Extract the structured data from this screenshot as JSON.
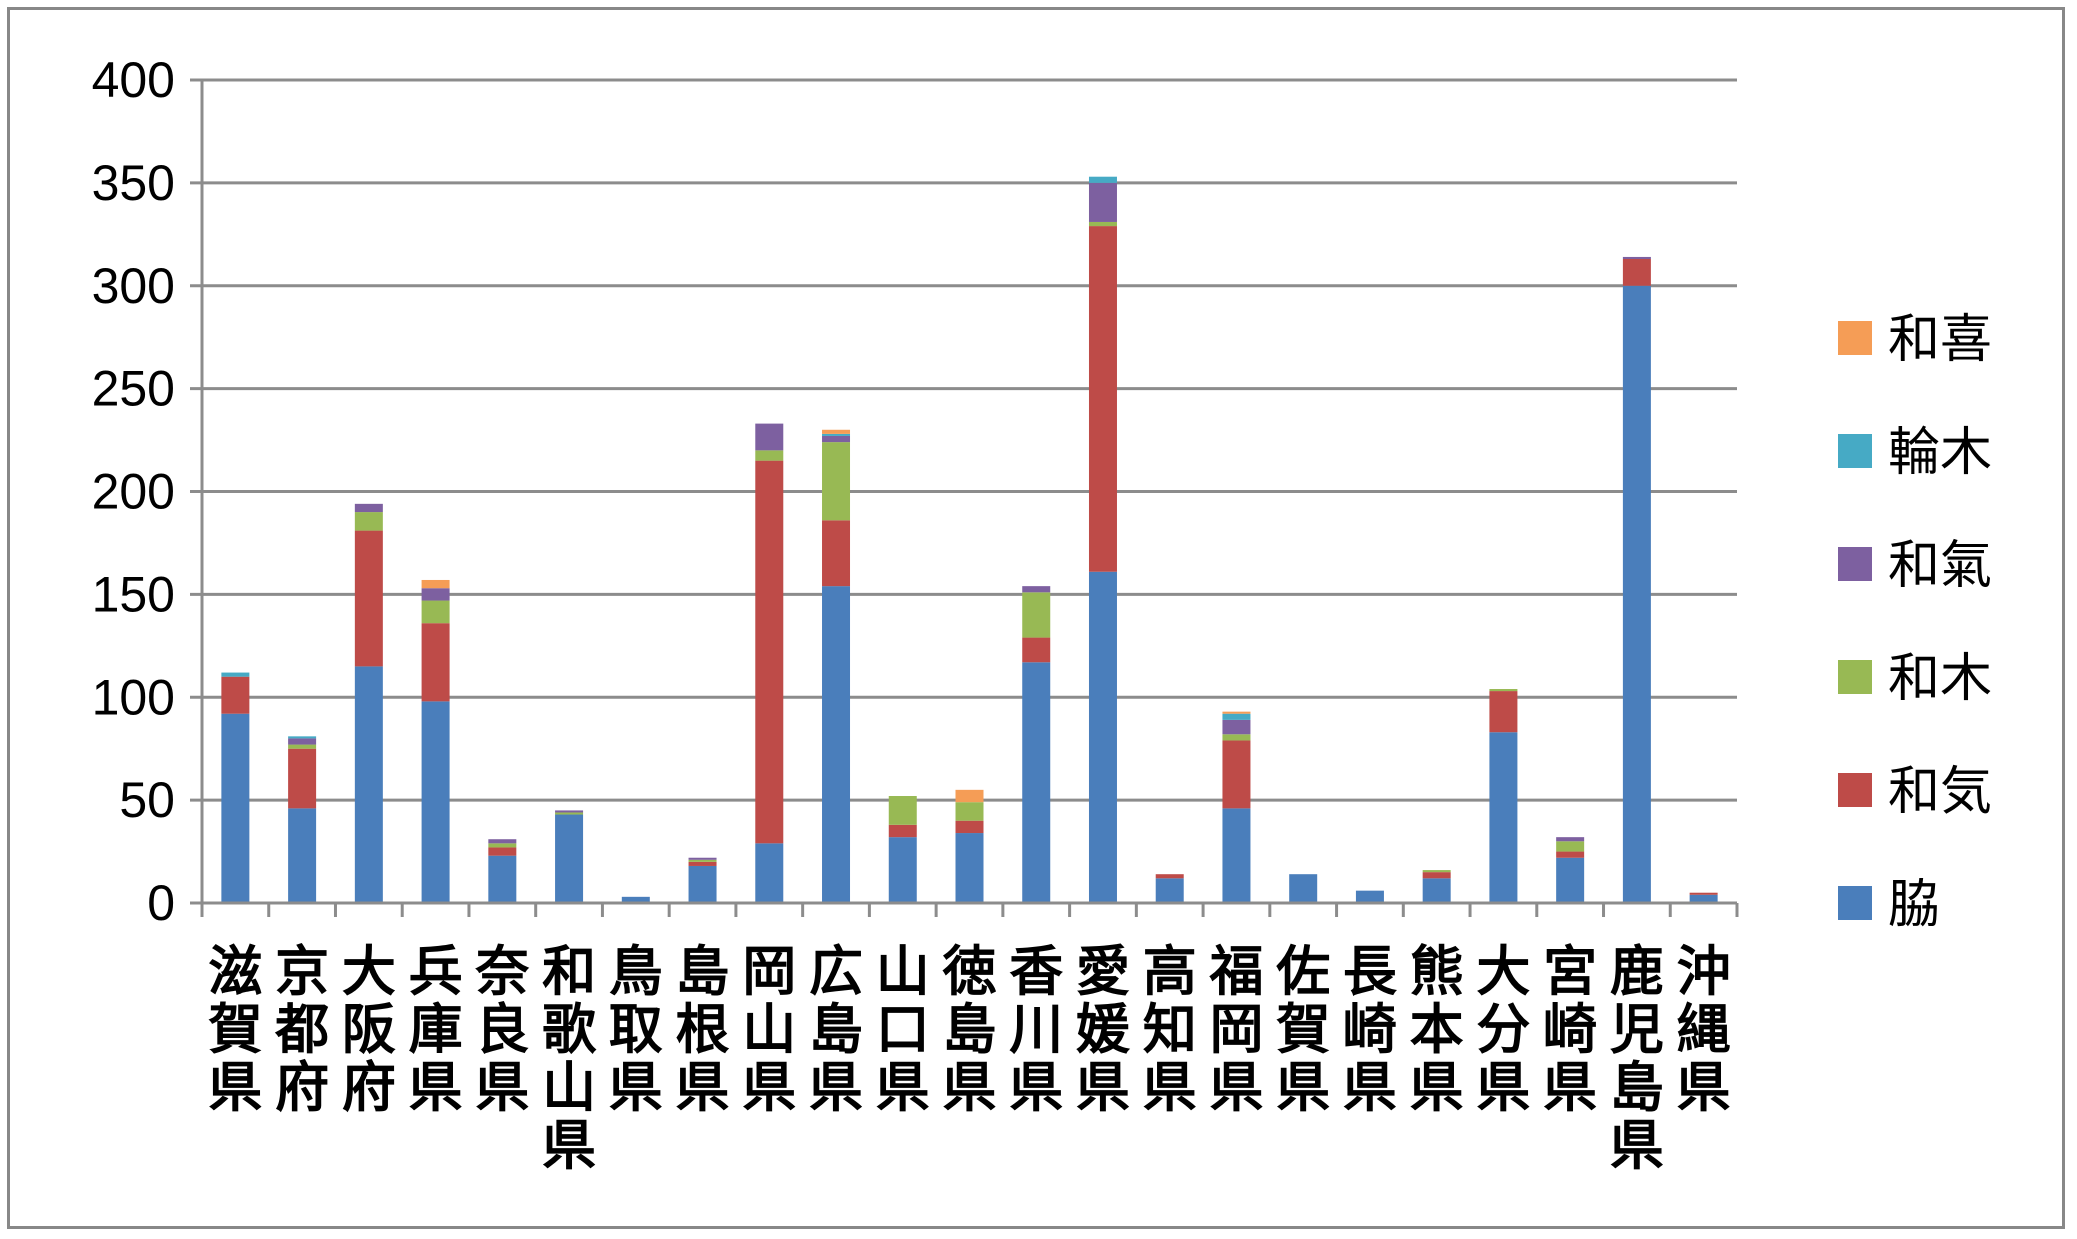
{
  "chart_data": {
    "type": "bar",
    "stacked": true,
    "categories": [
      "滋賀県",
      "京都府",
      "大阪府",
      "兵庫県",
      "奈良県",
      "和歌山県",
      "鳥取県",
      "島根県",
      "岡山県",
      "広島県",
      "山口県",
      "徳島県",
      "香川県",
      "愛媛県",
      "高知県",
      "福岡県",
      "佐賀県",
      "長崎県",
      "熊本県",
      "大分県",
      "宮崎県",
      "鹿児島県",
      "沖縄県"
    ],
    "series": [
      {
        "name": "脇",
        "color": "#4a7ebb",
        "values": [
          92,
          46,
          115,
          98,
          23,
          43,
          3,
          18,
          29,
          154,
          32,
          34,
          117,
          161,
          12,
          46,
          14,
          6,
          12,
          83,
          22,
          300,
          4
        ]
      },
      {
        "name": "和気",
        "color": "#be4b48",
        "values": [
          18,
          29,
          66,
          38,
          4,
          0,
          0,
          2,
          186,
          32,
          6,
          6,
          12,
          168,
          2,
          33,
          0,
          0,
          3,
          20,
          3,
          13,
          1
        ]
      },
      {
        "name": "和木",
        "color": "#98b954",
        "values": [
          0,
          2,
          9,
          11,
          2,
          1,
          0,
          1,
          5,
          38,
          14,
          9,
          22,
          2,
          0,
          3,
          0,
          0,
          1,
          1,
          5,
          0,
          0
        ]
      },
      {
        "name": "和氣",
        "color": "#7d60a0",
        "values": [
          0,
          3,
          4,
          6,
          2,
          1,
          0,
          1,
          13,
          3,
          0,
          0,
          3,
          19,
          0,
          7,
          0,
          0,
          0,
          0,
          2,
          1,
          0
        ]
      },
      {
        "name": "輪木",
        "color": "#46aac5",
        "values": [
          2,
          1,
          0,
          0,
          0,
          0,
          0,
          0,
          0,
          1,
          0,
          0,
          0,
          3,
          0,
          3,
          0,
          0,
          0,
          0,
          0,
          0,
          0
        ]
      },
      {
        "name": "和喜",
        "color": "#f59d56",
        "values": [
          0,
          0,
          0,
          4,
          0,
          0,
          0,
          0,
          0,
          2,
          0,
          6,
          0,
          0,
          0,
          1,
          0,
          0,
          0,
          0,
          0,
          0,
          0
        ]
      }
    ],
    "ylim": [
      0,
      400
    ],
    "yticks": [
      0,
      50,
      100,
      150,
      200,
      250,
      300,
      350,
      400
    ],
    "grid": true,
    "legend_position": "right",
    "legend_order": [
      "和喜",
      "輪木",
      "和氣",
      "和木",
      "和気",
      "脇"
    ]
  }
}
